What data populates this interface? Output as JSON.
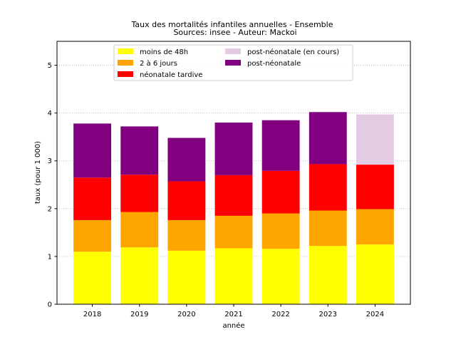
{
  "chart_data": {
    "type": "bar",
    "stacked": true,
    "title": "Taux des mortalités infantiles annuelles - Ensemble",
    "subtitle": "Sources: insee - Auteur: Mackoi",
    "xlabel": "année",
    "ylabel": "taux (pour 1 000)",
    "ylim": [
      0,
      5.5
    ],
    "yticks": [
      "0",
      "1",
      "2",
      "3",
      "4",
      "5"
    ],
    "grid": "y-dotted",
    "legend_position": "top",
    "categories": [
      "2018",
      "2019",
      "2020",
      "2021",
      "2022",
      "2023",
      "2024"
    ],
    "series": [
      {
        "name": "moins de 48h",
        "color": "#ffff00",
        "values": [
          1.1,
          1.19,
          1.12,
          1.17,
          1.16,
          1.22,
          1.25
        ]
      },
      {
        "name": "2 à 6 jours",
        "color": "#ffa500",
        "values": [
          0.66,
          0.74,
          0.64,
          0.68,
          0.74,
          0.74,
          0.74
        ]
      },
      {
        "name": "néonatale tardive",
        "color": "#ff0000",
        "values": [
          0.89,
          0.78,
          0.81,
          0.85,
          0.89,
          0.97,
          0.93
        ]
      },
      {
        "name": "post-néonatale",
        "color": "#800080",
        "values": [
          1.13,
          1.01,
          0.91,
          1.1,
          1.06,
          1.09,
          null
        ]
      },
      {
        "name": "post-néonatale (en cours)",
        "color": "#e3cce3",
        "values": [
          null,
          null,
          null,
          null,
          null,
          null,
          1.05
        ]
      }
    ],
    "legend_order": [
      "moins de 48h",
      "2 à 6 jours",
      "néonatale tardive",
      "post-néonatale (en cours)",
      "post-néonatale"
    ]
  }
}
